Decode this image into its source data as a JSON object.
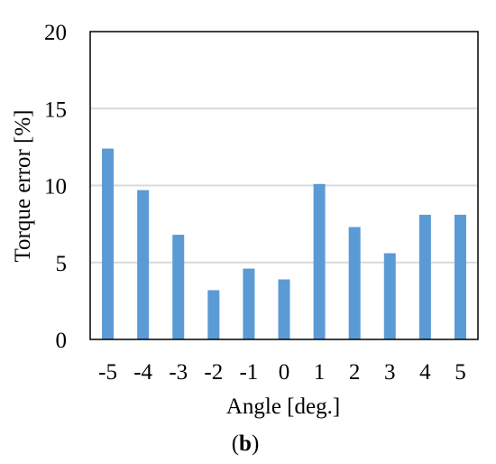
{
  "chart_data": {
    "type": "bar",
    "title": "",
    "xlabel": "Angle [deg.]",
    "ylabel": "Torque error [%]",
    "categories": [
      "-5",
      "-4",
      "-3",
      "-2",
      "-1",
      "0",
      "1",
      "2",
      "3",
      "4",
      "5"
    ],
    "values": [
      12.4,
      9.7,
      6.8,
      3.2,
      4.6,
      3.9,
      10.1,
      7.3,
      5.6,
      8.1,
      8.1
    ],
    "ylim": [
      0,
      20
    ],
    "yticks": [
      "0",
      "5",
      "10",
      "15",
      "20"
    ],
    "grid": true,
    "legend": "none",
    "bar_color": "#5B9BD5",
    "grid_color": "#D9D9D9"
  },
  "caption": {
    "bold": "b",
    "open": "(",
    "close": ")"
  }
}
